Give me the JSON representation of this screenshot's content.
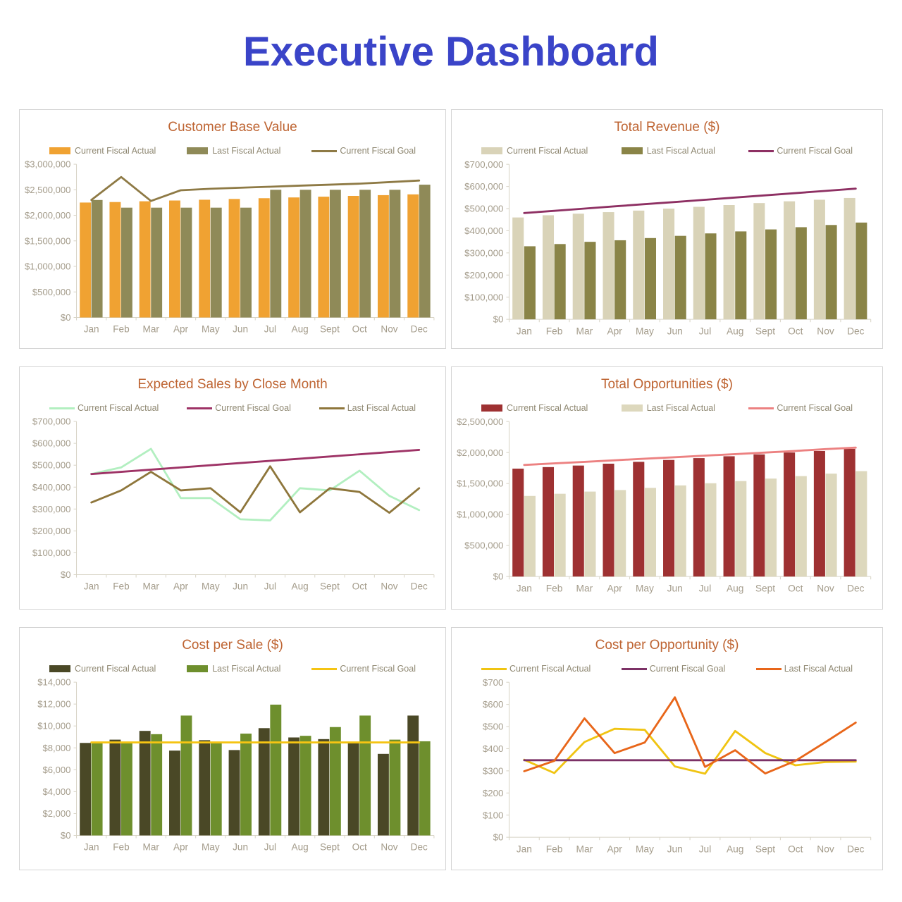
{
  "page_title": "Executive Dashboard",
  "theme": {
    "main_title_color": "#3a44c8",
    "panel_title_color": "#be6432",
    "axis_color": "#d8d4c6",
    "tick_label_color": "#a49c8b",
    "legend_text_color": "#8f8872",
    "panel_border_color": "#d4d4d4"
  },
  "chart_data": [
    {
      "id": "customer-base-value",
      "title": "Customer Base Value",
      "type": "bar",
      "legend_position": "top",
      "categories": [
        "Jan",
        "Feb",
        "Mar",
        "Apr",
        "May",
        "Jun",
        "Jul",
        "Aug",
        "Sept",
        "Oct",
        "Nov",
        "Dec"
      ],
      "y_axis": {
        "min": 0,
        "max": 3000000,
        "step": 500000,
        "tick_prefix": "$"
      },
      "series": [
        {
          "name": "Current Fiscal Actual",
          "kind": "bar",
          "color": "#f0a232",
          "values": [
            2250000,
            2260000,
            2275000,
            2290000,
            2305000,
            2320000,
            2335000,
            2350000,
            2365000,
            2380000,
            2395000,
            2410000
          ]
        },
        {
          "name": "Last Fiscal Actual",
          "kind": "bar",
          "color": "#8f8a58",
          "values": [
            2300000,
            2150000,
            2150000,
            2150000,
            2150000,
            2150000,
            2500000,
            2500000,
            2500000,
            2500000,
            2500000,
            2600000
          ]
        },
        {
          "name": "Current Fiscal Goal",
          "kind": "line",
          "color": "#8e7a45",
          "values": [
            2300000,
            2750000,
            2280000,
            2490000,
            2520000,
            2540000,
            2560000,
            2580000,
            2600000,
            2620000,
            2650000,
            2680000
          ]
        }
      ]
    },
    {
      "id": "total-revenue",
      "title": "Total Revenue ($)",
      "type": "bar",
      "legend_position": "top",
      "categories": [
        "Jan",
        "Feb",
        "Mar",
        "Apr",
        "May",
        "Jun",
        "Jul",
        "Aug",
        "Sept",
        "Oct",
        "Nov",
        "Dec"
      ],
      "y_axis": {
        "min": 0,
        "max": 700000,
        "step": 100000,
        "tick_prefix": "$"
      },
      "series": [
        {
          "name": "Current Fiscal Actual",
          "kind": "bar",
          "color": "#d9d3b8",
          "values": [
            460000,
            470000,
            477000,
            484000,
            491000,
            500000,
            508000,
            516000,
            525000,
            533000,
            540000,
            548000
          ]
        },
        {
          "name": "Last Fiscal Actual",
          "kind": "bar",
          "color": "#8a8447",
          "values": [
            330000,
            340000,
            350000,
            357000,
            367000,
            377000,
            388000,
            397000,
            406000,
            416000,
            426000,
            437000
          ]
        },
        {
          "name": "Current Fiscal Goal",
          "kind": "line",
          "color": "#8e3063",
          "values": [
            480000,
            490000,
            500000,
            510000,
            520000,
            530000,
            540000,
            550000,
            560000,
            570000,
            580000,
            590000
          ]
        }
      ]
    },
    {
      "id": "expected-sales-by-close-month",
      "title": "Expected Sales by Close Month",
      "type": "line",
      "legend_position": "top",
      "categories": [
        "Jan",
        "Feb",
        "Mar",
        "Apr",
        "May",
        "Jun",
        "Jul",
        "Aug",
        "Sept",
        "Oct",
        "Nov",
        "Dec"
      ],
      "y_axis": {
        "min": 0,
        "max": 700000,
        "step": 100000,
        "tick_prefix": "$"
      },
      "series": [
        {
          "name": "Current Fiscal Actual",
          "kind": "line",
          "color": "#b2efc0",
          "values": [
            460000,
            490000,
            575000,
            350000,
            350000,
            253000,
            248000,
            395000,
            385000,
            475000,
            360000,
            295000
          ]
        },
        {
          "name": "Current Fiscal Goal",
          "kind": "line",
          "color": "#9e3366",
          "values": [
            460000,
            470000,
            480000,
            490000,
            500000,
            510000,
            520000,
            530000,
            540000,
            550000,
            560000,
            570000
          ]
        },
        {
          "name": "Last Fiscal Actual",
          "kind": "line",
          "color": "#8e763b",
          "values": [
            330000,
            385000,
            470000,
            385000,
            395000,
            285000,
            495000,
            285000,
            395000,
            378000,
            283000,
            395000
          ]
        }
      ]
    },
    {
      "id": "total-opportunities",
      "title": "Total Opportunities  ($)",
      "type": "bar",
      "legend_position": "top",
      "categories": [
        "Jan",
        "Feb",
        "Mar",
        "Apr",
        "May",
        "Jun",
        "Jul",
        "Aug",
        "Sept",
        "Oct",
        "Nov",
        "Dec"
      ],
      "y_axis": {
        "min": 0,
        "max": 2500000,
        "step": 500000,
        "tick_prefix": "$"
      },
      "series": [
        {
          "name": "Current Fiscal Actual",
          "kind": "bar",
          "color": "#9e3132",
          "values": [
            1740000,
            1765000,
            1790000,
            1820000,
            1850000,
            1880000,
            1910000,
            1940000,
            1970000,
            2000000,
            2025000,
            2060000
          ]
        },
        {
          "name": "Last Fiscal Actual",
          "kind": "bar",
          "color": "#ddd8bd",
          "values": [
            1300000,
            1335000,
            1370000,
            1395000,
            1430000,
            1470000,
            1505000,
            1540000,
            1580000,
            1620000,
            1660000,
            1700000
          ]
        },
        {
          "name": "Current Fiscal Goal",
          "kind": "line",
          "color": "#ec8181",
          "values": [
            1800000,
            1825000,
            1850000,
            1875000,
            1900000,
            1925000,
            1950000,
            1975000,
            2000000,
            2025000,
            2055000,
            2080000
          ]
        }
      ]
    },
    {
      "id": "cost-per-sale",
      "title": "Cost per Sale ($)",
      "type": "bar",
      "legend_position": "top",
      "categories": [
        "Jan",
        "Feb",
        "Mar",
        "Apr",
        "May",
        "Jun",
        "Jul",
        "Aug",
        "Sept",
        "Oct",
        "Nov",
        "Dec"
      ],
      "y_axis": {
        "min": 0,
        "max": 14000,
        "step": 2000,
        "tick_prefix": "$"
      },
      "series": [
        {
          "name": "Current Fiscal Actual",
          "kind": "bar",
          "color": "#4a4826",
          "values": [
            8450,
            8750,
            9550,
            7750,
            8700,
            7800,
            9800,
            8950,
            8800,
            8450,
            7450,
            10950
          ]
        },
        {
          "name": "Last Fiscal Actual",
          "kind": "bar",
          "color": "#6e8f2d",
          "values": [
            8450,
            8450,
            9250,
            10950,
            8450,
            9300,
            11950,
            9100,
            9900,
            10950,
            8750,
            8600
          ]
        },
        {
          "name": "Current Fiscal Goal",
          "kind": "line",
          "color": "#f5c413",
          "values": [
            8500,
            8500,
            8500,
            8500,
            8500,
            8500,
            8500,
            8500,
            8500,
            8500,
            8500,
            8500
          ]
        }
      ]
    },
    {
      "id": "cost-per-opportunity",
      "title": "Cost per Opportunity  ($)",
      "type": "line",
      "legend_position": "top",
      "categories": [
        "Jan",
        "Feb",
        "Mar",
        "Apr",
        "May",
        "Jun",
        "Jul",
        "Aug",
        "Sept",
        "Oct",
        "Nov",
        "Dec"
      ],
      "y_axis": {
        "min": 0,
        "max": 700,
        "step": 100,
        "tick_prefix": "$"
      },
      "series": [
        {
          "name": "Current Fiscal Actual",
          "kind": "line",
          "color": "#f0c412",
          "values": [
            350,
            290,
            430,
            490,
            485,
            320,
            287,
            480,
            380,
            325,
            340,
            342
          ]
        },
        {
          "name": "Current Fiscal Goal",
          "kind": "line",
          "color": "#7c3166",
          "values": [
            348,
            348,
            348,
            348,
            348,
            348,
            348,
            348,
            348,
            348,
            348,
            348
          ]
        },
        {
          "name": "Last Fiscal Actual",
          "kind": "line",
          "color": "#e8661a",
          "values": [
            298,
            345,
            537,
            380,
            428,
            632,
            318,
            393,
            288,
            345,
            430,
            518
          ]
        }
      ]
    }
  ]
}
